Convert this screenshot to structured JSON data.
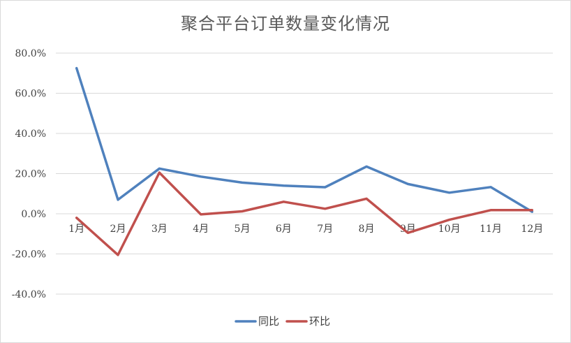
{
  "chart_data": {
    "type": "line",
    "title": "聚合平台订单数量变化情况",
    "categories": [
      "1月",
      "2月",
      "3月",
      "4月",
      "5月",
      "6月",
      "7月",
      "8月",
      "9月",
      "10月",
      "11月",
      "12月"
    ],
    "series": [
      {
        "name": "同比",
        "color": "#4f81bd",
        "values": [
          72.5,
          7.0,
          22.5,
          18.5,
          15.5,
          14.0,
          13.2,
          23.5,
          14.8,
          10.5,
          13.3,
          1.0
        ]
      },
      {
        "name": "环比",
        "color": "#c0504d",
        "values": [
          -2.0,
          -20.5,
          20.5,
          -0.3,
          1.2,
          6.0,
          2.5,
          7.5,
          -9.5,
          -3.0,
          1.8,
          1.8
        ]
      }
    ],
    "yticks": [
      "80.0%",
      "60.0%",
      "40.0%",
      "20.0%",
      "0.0%",
      "-20.0%",
      "-40.0%"
    ],
    "ylim": [
      -40,
      80
    ],
    "grid": true,
    "legend_position": "bottom"
  }
}
